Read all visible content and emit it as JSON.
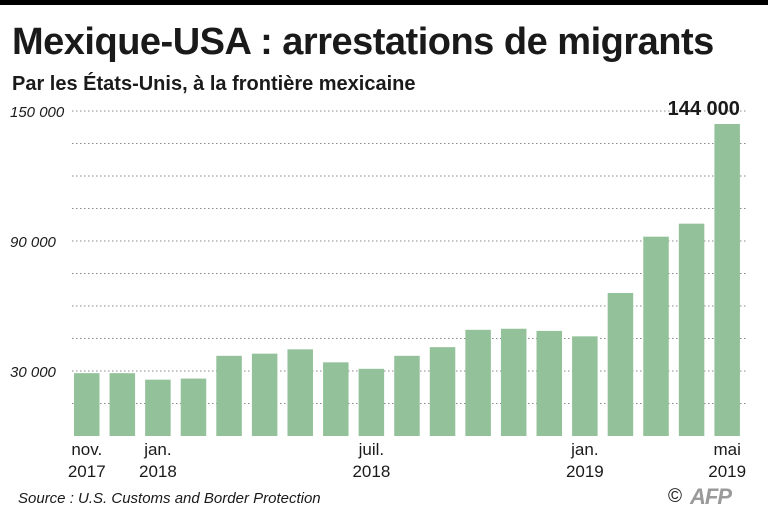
{
  "header": {
    "title": "Mexique-USA : arrestations de migrants",
    "subtitle": "Par les États-Unis, à la frontière mexicaine"
  },
  "footer": {
    "source": "Source : U.S. Customs and Border Protection",
    "copyright": "©",
    "brand": "AFP"
  },
  "colors": {
    "bar": "#93c19a",
    "grid": "#8a8a8a",
    "text": "#1a1a1a"
  },
  "chart_data": {
    "type": "bar",
    "ylim": [
      0,
      150000
    ],
    "yticks": [
      {
        "value": 30000,
        "label": "30 000"
      },
      {
        "value": 90000,
        "label": "90 000"
      },
      {
        "value": 150000,
        "label": "150 000"
      }
    ],
    "grid": true,
    "grid_step": 15000,
    "values": [
      29000,
      29000,
      26000,
      26500,
      37000,
      38000,
      40000,
      34000,
      31000,
      37000,
      41000,
      49000,
      49500,
      48500,
      46000,
      66000,
      92000,
      98000,
      144000
    ],
    "x_labels": [
      {
        "index": 0,
        "lines": [
          "nov.",
          "2017"
        ]
      },
      {
        "index": 2,
        "lines": [
          "jan.",
          "2018"
        ]
      },
      {
        "index": 8,
        "lines": [
          "juil.",
          "2018"
        ]
      },
      {
        "index": 14,
        "lines": [
          "jan.",
          "2019"
        ]
      },
      {
        "index": 18,
        "lines": [
          "mai",
          "2019"
        ]
      }
    ],
    "annotations": [
      {
        "index": 18,
        "text": "144 000"
      }
    ]
  }
}
